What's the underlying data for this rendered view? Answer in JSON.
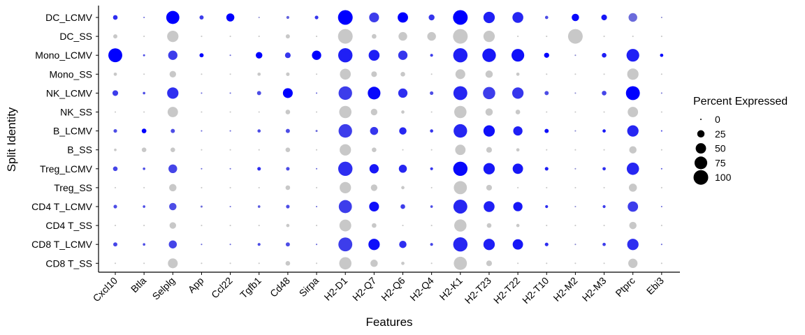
{
  "chart_data": {
    "type": "dotplot",
    "xlabel": "Features",
    "ylabel": "Split Identity",
    "features": [
      "Cxcl10",
      "Btla",
      "Selplg",
      "App",
      "Ccl22",
      "Tgfb1",
      "Cd48",
      "Sirpa",
      "H2-D1",
      "H2-Q7",
      "H2-Q6",
      "H2-Q4",
      "H2-K1",
      "H2-T23",
      "H2-T22",
      "H2-T10",
      "H2-M2",
      "H2-M3",
      "Ptprc",
      "Ebi3"
    ],
    "identities": [
      "DC_LCMV",
      "DC_SS",
      "Mono_LCMV",
      "Mono_SS",
      "NK_LCMV",
      "NK_SS",
      "B_LCMV",
      "B_SS",
      "Treg_LCMV",
      "Treg_SS",
      "CD4 T_LCMV",
      "CD4 T_SS",
      "CD8 T_LCMV",
      "CD8 T_SS"
    ],
    "percent_expressed": [
      [
        10,
        1,
        80,
        8,
        30,
        1,
        4,
        6,
        100,
        45,
        50,
        16,
        100,
        60,
        55,
        5,
        25,
        15,
        35,
        1
      ],
      [
        8,
        1,
        60,
        1,
        1,
        1,
        8,
        1,
        100,
        10,
        35,
        35,
        100,
        60,
        1,
        1,
        100,
        1,
        1,
        1
      ],
      [
        90,
        2,
        40,
        8,
        1,
        20,
        15,
        40,
        95,
        55,
        40,
        4,
        95,
        85,
        75,
        12,
        1,
        10,
        75,
        5
      ],
      [
        5,
        1,
        20,
        1,
        1,
        5,
        6,
        1,
        55,
        15,
        10,
        1,
        45,
        25,
        5,
        1,
        1,
        1,
        60,
        1
      ],
      [
        15,
        3,
        60,
        1,
        1,
        8,
        45,
        1,
        85,
        75,
        40,
        6,
        90,
        70,
        60,
        8,
        1,
        10,
        90,
        1
      ],
      [
        1,
        1,
        50,
        1,
        1,
        1,
        10,
        1,
        70,
        20,
        5,
        1,
        70,
        25,
        10,
        1,
        1,
        1,
        50,
        1
      ],
      [
        6,
        10,
        8,
        1,
        1,
        5,
        8,
        2,
        85,
        30,
        25,
        5,
        85,
        60,
        40,
        8,
        1,
        5,
        60,
        1
      ],
      [
        3,
        10,
        10,
        1,
        1,
        1,
        10,
        1,
        60,
        10,
        1,
        1,
        50,
        15,
        5,
        1,
        1,
        1,
        25,
        1
      ],
      [
        10,
        3,
        35,
        1,
        1,
        6,
        6,
        1,
        95,
        40,
        30,
        4,
        95,
        60,
        50,
        6,
        1,
        5,
        70,
        1
      ],
      [
        1,
        1,
        25,
        1,
        1,
        1,
        10,
        1,
        60,
        20,
        5,
        1,
        80,
        15,
        1,
        1,
        1,
        1,
        30,
        1
      ],
      [
        6,
        3,
        25,
        2,
        1,
        3,
        6,
        1,
        80,
        45,
        10,
        3,
        90,
        55,
        40,
        4,
        1,
        4,
        50,
        1
      ],
      [
        1,
        1,
        20,
        1,
        1,
        1,
        5,
        1,
        65,
        10,
        1,
        1,
        70,
        10,
        5,
        1,
        1,
        1,
        25,
        1
      ],
      [
        8,
        3,
        30,
        1,
        1,
        4,
        8,
        1,
        90,
        60,
        25,
        4,
        95,
        60,
        50,
        6,
        1,
        5,
        60,
        1
      ],
      [
        1,
        1,
        45,
        1,
        1,
        1,
        10,
        1,
        70,
        25,
        5,
        1,
        80,
        15,
        1,
        1,
        1,
        1,
        40,
        1
      ]
    ],
    "color_intensity": [
      [
        0.7,
        0.3,
        1.0,
        0.6,
        1.0,
        0.1,
        0.35,
        0.65,
        1.0,
        0.6,
        1.0,
        0.65,
        1.0,
        0.8,
        0.75,
        0.5,
        0.95,
        0.85,
        0.3,
        0.1
      ],
      [
        0,
        0,
        0,
        0,
        0,
        0,
        0,
        0,
        0,
        0,
        0,
        0,
        0,
        0,
        0,
        0,
        0,
        0,
        0,
        0
      ],
      [
        1.0,
        0.5,
        0.6,
        1.0,
        0.3,
        1.0,
        0.65,
        1.0,
        0.8,
        0.8,
        0.65,
        0.6,
        0.8,
        0.85,
        0.9,
        1.0,
        0.1,
        0.8,
        0.8,
        1.0
      ],
      [
        0,
        0,
        0,
        0,
        0,
        0,
        0,
        0,
        0,
        0,
        0,
        0,
        0,
        0,
        0,
        0,
        0,
        0,
        0,
        0
      ],
      [
        0.6,
        0.5,
        0.7,
        0.3,
        0.3,
        0.5,
        1.0,
        0.3,
        0.6,
        0.95,
        0.7,
        0.5,
        0.75,
        0.6,
        0.65,
        0.5,
        0.1,
        0.55,
        1.0,
        0.2
      ],
      [
        0,
        0,
        0,
        0,
        0,
        0,
        0,
        0,
        0,
        0,
        0,
        0,
        0,
        0,
        0,
        0,
        0,
        0,
        0,
        0
      ],
      [
        0.5,
        1.0,
        0.5,
        0.3,
        0.3,
        0.5,
        0.5,
        0.3,
        0.6,
        0.65,
        0.75,
        0.65,
        0.75,
        0.9,
        0.8,
        0.9,
        0.1,
        0.85,
        0.75,
        0.5
      ],
      [
        0,
        0,
        0,
        0,
        0,
        0,
        0,
        0,
        0,
        0,
        0,
        0,
        0,
        0,
        0,
        0,
        0,
        0,
        0,
        0
      ],
      [
        0.55,
        0.5,
        0.55,
        0.3,
        0.3,
        0.7,
        0.5,
        0.3,
        0.7,
        0.85,
        0.75,
        0.65,
        0.95,
        0.85,
        0.85,
        0.8,
        0.1,
        0.7,
        0.75,
        0.4
      ],
      [
        0,
        0,
        0,
        0,
        0,
        0,
        0,
        0,
        0,
        0,
        0,
        0,
        0,
        0,
        0,
        0,
        0,
        0,
        0,
        0
      ],
      [
        0.5,
        0.5,
        0.5,
        0.3,
        0.3,
        0.4,
        0.5,
        0.3,
        0.6,
        0.9,
        0.6,
        0.5,
        0.75,
        0.8,
        0.85,
        0.7,
        0.1,
        0.6,
        0.6,
        0.3
      ],
      [
        0,
        0,
        0,
        0,
        0,
        0,
        0,
        0,
        0,
        0,
        0,
        0,
        0,
        0,
        0,
        0,
        0,
        0,
        0,
        0
      ],
      [
        0.55,
        0.5,
        0.55,
        0.3,
        0.3,
        0.5,
        0.5,
        0.3,
        0.6,
        0.9,
        0.7,
        0.55,
        0.75,
        0.8,
        0.85,
        0.7,
        0.1,
        0.6,
        0.7,
        0.3
      ],
      [
        0,
        0,
        0,
        0,
        0,
        0,
        0,
        0,
        0,
        0,
        0,
        0,
        0,
        0,
        0,
        0,
        0,
        0,
        0,
        0
      ]
    ],
    "colors": {
      "high": "#0000ff",
      "low": "#9999cc",
      "baseline": "#c8c8c8",
      "axis": "#000000"
    },
    "legend": {
      "title": "Percent Expressed",
      "position": "right",
      "values": [
        0,
        25,
        50,
        75,
        100
      ],
      "labels": [
        "0",
        "25",
        "50",
        "75",
        "100"
      ]
    },
    "grid": false
  }
}
